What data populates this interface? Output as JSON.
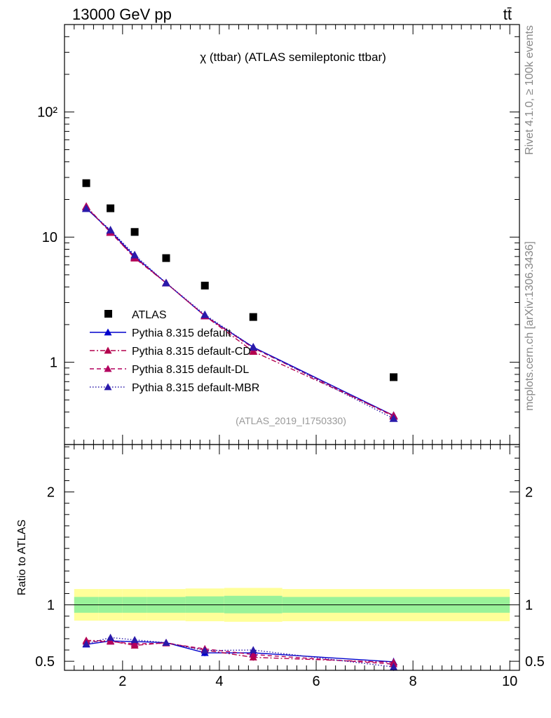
{
  "header": {
    "left": "13000 GeV pp",
    "right": "tt̄"
  },
  "side_labels": {
    "rivet": "Rivet 4.1.0, ≥ 100k events",
    "mcplots": "mcplots.cern.ch [arXiv:1306.3436]"
  },
  "colors": {
    "atlas": "#000000",
    "default": "#0000cc",
    "cd": "#b3004d",
    "dl": "#b3005e",
    "mbr": "#2a1aaa",
    "band_inner": "#99f299",
    "band_outer": "#ffff99"
  },
  "chart_data": {
    "type": "scatter",
    "title": "χ (ttbar) (ATLAS semileptonic ttbar)",
    "analysis_tag": "(ATLAS_2019_I1750330)",
    "xlim": [
      0.8,
      10.2
    ],
    "main": {
      "yscale": "log",
      "ylim": [
        0.22,
        500
      ],
      "ytick_labels": [
        {
          "value": 1,
          "label": "1"
        },
        {
          "value": 10,
          "label": "10"
        },
        {
          "value": 100,
          "label": "10²"
        }
      ],
      "legend_position": "lower-left",
      "series": [
        {
          "name": "ATLAS",
          "style": "square",
          "color": "#000000",
          "x": [
            1.25,
            1.75,
            2.25,
            2.9,
            3.7,
            4.7,
            7.6
          ],
          "y": [
            27,
            17,
            11,
            6.8,
            4.1,
            2.3,
            0.76
          ]
        },
        {
          "name": "Pythia 8.315 default",
          "style": "solid",
          "color": "#0000cc",
          "x": [
            1.25,
            1.75,
            2.25,
            2.9,
            3.7,
            4.7,
            7.6
          ],
          "y": [
            17.0,
            11.2,
            7.0,
            4.3,
            2.35,
            1.32,
            0.375
          ]
        },
        {
          "name": "Pythia 8.315 default-CD",
          "style": "dashdot",
          "color": "#b3004d",
          "x": [
            1.25,
            1.75,
            2.25,
            2.9,
            3.7,
            4.7,
            7.6
          ],
          "y": [
            17.6,
            11.0,
            6.8,
            4.3,
            2.35,
            1.22,
            0.375
          ]
        },
        {
          "name": "Pythia 8.315 default-DL",
          "style": "dashed",
          "color": "#b3005e",
          "x": [
            1.25,
            1.75,
            2.25,
            2.9,
            3.7,
            4.7,
            7.6
          ],
          "y": [
            17.4,
            10.9,
            6.9,
            4.3,
            2.35,
            1.3,
            0.37
          ]
        },
        {
          "name": "Pythia 8.315 default-MBR",
          "style": "dotted",
          "color": "#2a1aaa",
          "x": [
            1.25,
            1.75,
            2.25,
            2.9,
            3.7,
            4.7,
            7.6
          ],
          "y": [
            16.9,
            11.4,
            7.2,
            4.3,
            2.4,
            1.32,
            0.355
          ]
        }
      ]
    },
    "ratio": {
      "ylabel": "Ratio to ATLAS",
      "ylim": [
        0.42,
        2.42
      ],
      "ytick_labels": [
        {
          "value": 0.5,
          "label": "0.5"
        },
        {
          "value": 1,
          "label": "1"
        },
        {
          "value": 2,
          "label": "2"
        }
      ],
      "bands": [
        {
          "x_lo": 1.0,
          "x_hi": 1.5,
          "inner": [
            0.93,
            1.07
          ],
          "outer": [
            0.86,
            1.14
          ]
        },
        {
          "x_lo": 1.5,
          "x_hi": 2.0,
          "inner": [
            0.93,
            1.07
          ],
          "outer": [
            0.86,
            1.14
          ]
        },
        {
          "x_lo": 2.0,
          "x_hi": 2.5,
          "inner": [
            0.93,
            1.07
          ],
          "outer": [
            0.86,
            1.14
          ]
        },
        {
          "x_lo": 2.5,
          "x_hi": 3.3,
          "inner": [
            0.93,
            1.07
          ],
          "outer": [
            0.86,
            1.14
          ]
        },
        {
          "x_lo": 3.3,
          "x_hi": 4.1,
          "inner": [
            0.93,
            1.075
          ],
          "outer": [
            0.855,
            1.145
          ]
        },
        {
          "x_lo": 4.1,
          "x_hi": 5.3,
          "inner": [
            0.925,
            1.08
          ],
          "outer": [
            0.85,
            1.15
          ]
        },
        {
          "x_lo": 5.3,
          "x_hi": 10.0,
          "inner": [
            0.93,
            1.07
          ],
          "outer": [
            0.855,
            1.14
          ]
        }
      ],
      "series": [
        {
          "name": "Pythia 8.315 default",
          "color": "#0000cc",
          "style": "solid",
          "x": [
            1.25,
            1.75,
            2.25,
            2.9,
            3.7,
            4.7,
            7.6
          ],
          "y": [
            0.65,
            0.68,
            0.675,
            0.665,
            0.575,
            0.575,
            0.495
          ],
          "err": [
            0.015,
            0.02,
            0.02,
            0.025,
            0.03,
            0.03,
            0.035
          ]
        },
        {
          "name": "Pythia 8.315 default-CD",
          "color": "#b3004d",
          "style": "dashdot",
          "x": [
            1.25,
            1.75,
            2.25,
            2.9,
            3.7,
            4.7,
            7.6
          ],
          "y": [
            0.685,
            0.68,
            0.64,
            0.665,
            0.6,
            0.535,
            0.49
          ],
          "err": [
            0.015,
            0.02,
            0.02,
            0.025,
            0.03,
            0.03,
            0.035
          ]
        },
        {
          "name": "Pythia 8.315 default-DL",
          "color": "#b3005e",
          "style": "dashed",
          "x": [
            1.25,
            1.75,
            2.25,
            2.9,
            3.7,
            4.7,
            7.6
          ],
          "y": [
            0.675,
            0.675,
            0.655,
            0.66,
            0.61,
            0.56,
            0.475
          ],
          "err": [
            0.015,
            0.02,
            0.02,
            0.025,
            0.03,
            0.03,
            0.035
          ]
        },
        {
          "name": "Pythia 8.315 default-MBR",
          "color": "#2a1aaa",
          "style": "dotted",
          "x": [
            1.25,
            1.75,
            2.25,
            2.9,
            3.7,
            4.7,
            7.6
          ],
          "y": [
            0.655,
            0.71,
            0.69,
            0.665,
            0.595,
            0.6,
            0.45
          ],
          "err": [
            0.015,
            0.02,
            0.02,
            0.025,
            0.03,
            0.03,
            0.035
          ]
        }
      ]
    },
    "xtick_labels": [
      {
        "value": 2,
        "label": "2"
      },
      {
        "value": 4,
        "label": "4"
      },
      {
        "value": 6,
        "label": "6"
      },
      {
        "value": 8,
        "label": "8"
      },
      {
        "value": 10,
        "label": "10"
      }
    ]
  }
}
